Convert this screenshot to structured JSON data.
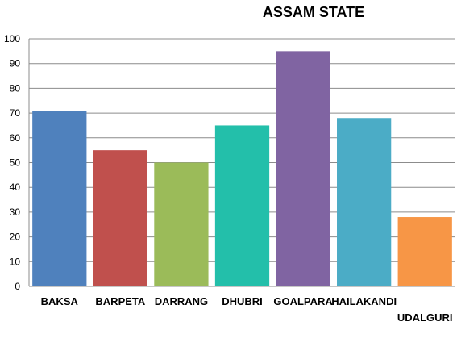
{
  "chart_data": {
    "type": "bar",
    "title": "ASSAM STATE",
    "categories": [
      "BAKSA",
      "BARPETA",
      "DARRANG",
      "DHUBRI",
      "GOALPARA",
      "HAILAKANDI",
      "UDALGURI"
    ],
    "values": [
      71,
      55,
      50,
      65,
      95,
      68,
      28
    ],
    "colors": [
      "#4f81bd",
      "#c0504d",
      "#9bbb59",
      "#23bfaa",
      "#8064a2",
      "#4bacc6",
      "#f79646"
    ],
    "xlabel": "",
    "ylabel": "",
    "ylim": [
      0,
      100
    ],
    "yticks": [
      0,
      10,
      20,
      30,
      40,
      50,
      60,
      70,
      80,
      90,
      100
    ],
    "grid": true,
    "legend": "none"
  }
}
